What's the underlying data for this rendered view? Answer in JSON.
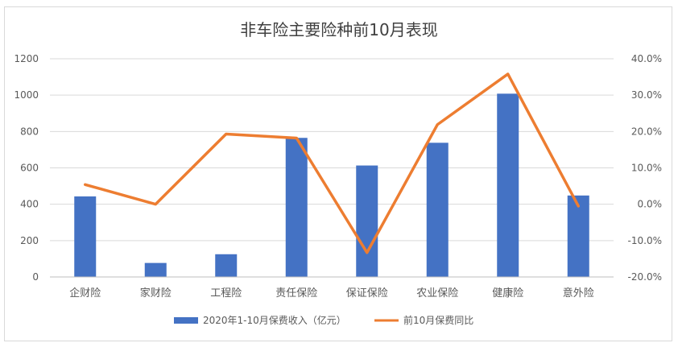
{
  "chart_data": {
    "type": "bar",
    "title": "非车险主要险种前10月表现",
    "categories": [
      "企财险",
      "家财险",
      "工程险",
      "责任保险",
      "保证保险",
      "农业保险",
      "健康险",
      "意外险"
    ],
    "series": [
      {
        "name": "2020年1-10月保费收入（亿元）",
        "type": "bar",
        "axis": "left",
        "color": "#4472c4",
        "values": [
          443,
          77,
          125,
          765,
          613,
          738,
          1008,
          448
        ]
      },
      {
        "name": "前10月保费同比",
        "type": "line",
        "axis": "right",
        "color": "#ed7d31",
        "values": [
          5.4,
          0.0,
          19.3,
          18.2,
          -13.3,
          21.9,
          35.8,
          -0.5
        ]
      }
    ],
    "ylim_left": [
      0,
      1200
    ],
    "ylim_right": [
      -20,
      40
    ],
    "yticks_left": [
      "0",
      "200",
      "400",
      "600",
      "800",
      "1000",
      "1200"
    ],
    "yticks_right": [
      "-20.0%",
      "-10.0%",
      "0.0%",
      "10.0%",
      "20.0%",
      "30.0%",
      "40.0%"
    ],
    "grid": true,
    "legend_position": "bottom"
  }
}
